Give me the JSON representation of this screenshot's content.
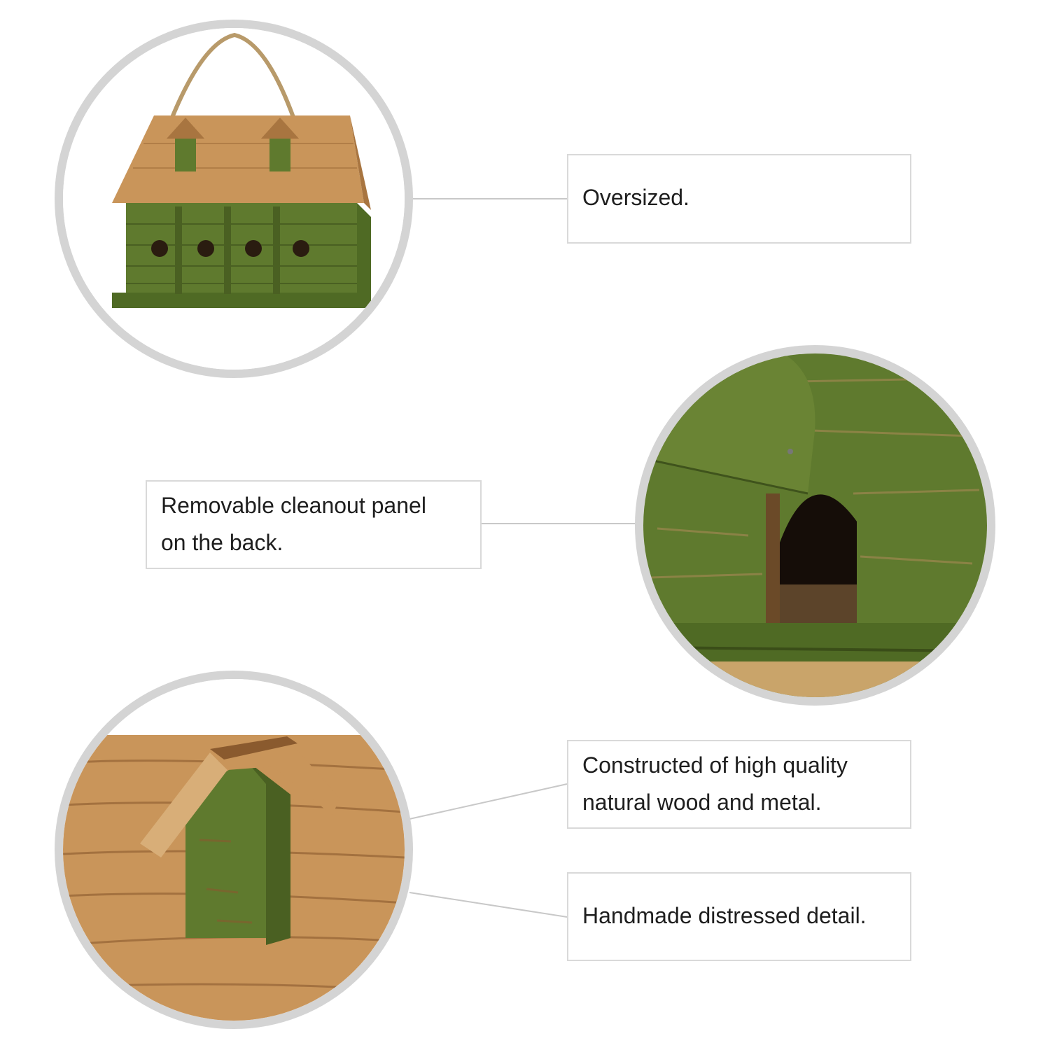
{
  "callouts": {
    "oversized": "Oversized.",
    "cleanout": [
      "Removable cleanout panel",
      "on the back."
    ],
    "materials": [
      "Constructed of high quality",
      "natural wood and metal."
    ],
    "detail": "Handmade distressed detail."
  },
  "colors": {
    "green": "#5f7a2e",
    "green_dark": "#4a6022",
    "wood": "#c9955a",
    "wood_dark": "#8a5a2e",
    "ring": "#d4d4d4",
    "line": "#c8c8c8"
  }
}
